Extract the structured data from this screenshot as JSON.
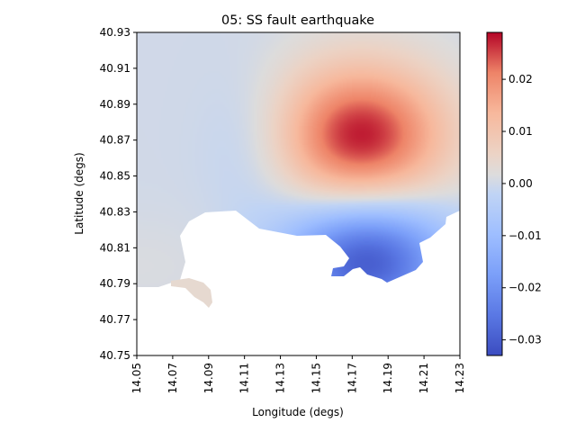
{
  "chart_data": {
    "type": "heatmap",
    "title": "05: SS fault earthquake",
    "xlabel": "Longitude (degs)",
    "ylabel": "Latitude (degs)",
    "xlim": [
      14.05,
      14.23
    ],
    "ylim": [
      40.75,
      40.93
    ],
    "xticks": [
      "14.05",
      "14.07",
      "14.09",
      "14.11",
      "14.13",
      "14.15",
      "14.17",
      "14.19",
      "14.21",
      "14.23"
    ],
    "yticks": [
      "40.75",
      "40.77",
      "40.79",
      "40.81",
      "40.83",
      "40.85",
      "40.87",
      "40.89",
      "40.91",
      "40.93"
    ],
    "colorbar": {
      "colormap": "coolwarm",
      "vmin": -0.033,
      "vmax": 0.029,
      "ticks": [
        "0.02",
        "0.01",
        "0.00",
        "−0.01",
        "−0.02",
        "−0.03"
      ],
      "tick_values": [
        0.02,
        0.01,
        0.0,
        -0.01,
        -0.02,
        -0.03
      ]
    },
    "field_features": [
      {
        "kind": "maximum",
        "lon": 14.175,
        "lat": 40.872,
        "value": 0.028
      },
      {
        "kind": "minimum",
        "lon": 14.178,
        "lat": 40.803,
        "value": -0.032
      },
      {
        "kind": "weak-minimum",
        "lon": 14.117,
        "lat": 40.868,
        "value": -0.004
      }
    ],
    "grid": false
  }
}
